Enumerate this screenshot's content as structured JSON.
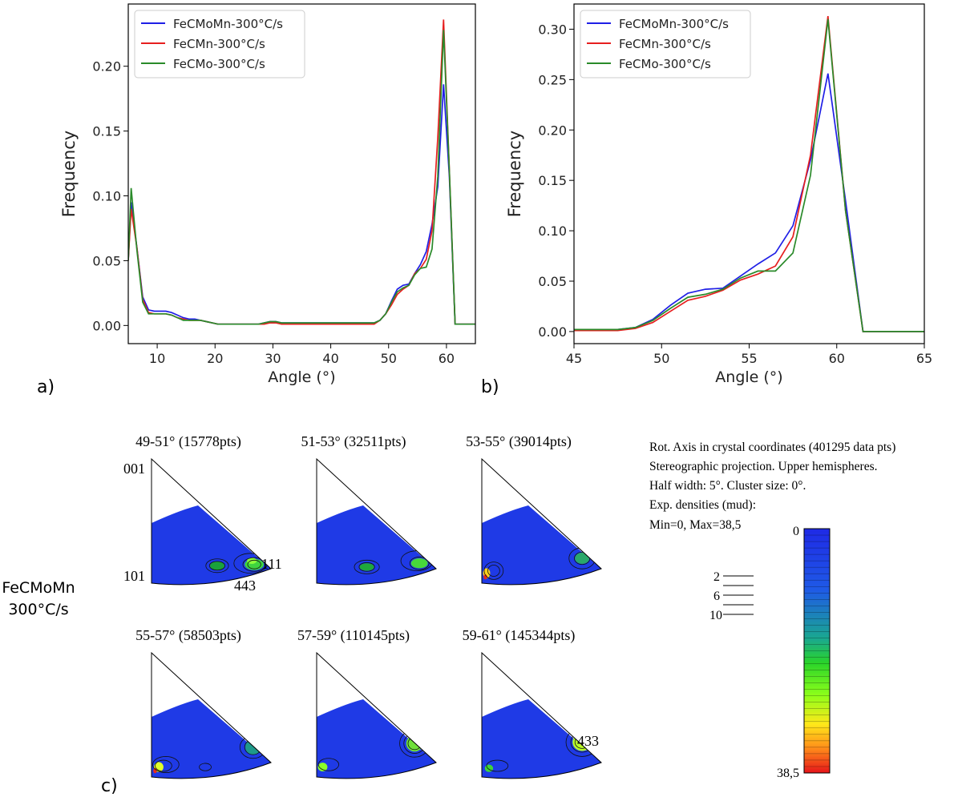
{
  "panel_labels": {
    "a": "a)",
    "b": "b)",
    "c": "c)"
  },
  "chart_data": [
    {
      "type": "line",
      "panel": "a",
      "title": "",
      "xlabel": "Angle (°)",
      "ylabel": "Frequency",
      "xlim": [
        5,
        65
      ],
      "ylim": [
        -0.014,
        0.248
      ],
      "xticks": [
        10,
        20,
        30,
        40,
        50,
        60
      ],
      "yticks": [
        0.0,
        0.05,
        0.1,
        0.15,
        0.2
      ],
      "ytick_labels": [
        "0.00",
        "0.05",
        "0.10",
        "0.15",
        "0.20"
      ],
      "grid": false,
      "legend": "top-left",
      "x": [
        5,
        5.5,
        6.5,
        7.5,
        8.5,
        9.5,
        10.5,
        11.5,
        12.5,
        13.5,
        14.5,
        15.5,
        16.5,
        17.5,
        18.5,
        19.5,
        20.5,
        21.5,
        22.5,
        23.5,
        24.5,
        25.5,
        26.5,
        27.5,
        28.5,
        29.5,
        30.5,
        31.5,
        32.5,
        33.5,
        34.5,
        35.5,
        36.5,
        37.5,
        38.5,
        39.5,
        40.5,
        41.5,
        42.5,
        43.5,
        44.5,
        45.5,
        46.5,
        47.5,
        48.5,
        49.5,
        50.5,
        51.5,
        52.5,
        53.5,
        54.5,
        55.5,
        56.5,
        57.5,
        58.5,
        59.5,
        60.5,
        61.5,
        62.5,
        63.5,
        64.5,
        65
      ],
      "series": [
        {
          "name": "FeCMoMn-300°C/s",
          "color": "#1f1fe6",
          "values": [
            0.05,
            0.095,
            0.06,
            0.022,
            0.012,
            0.011,
            0.011,
            0.011,
            0.01,
            0.008,
            0.006,
            0.005,
            0.005,
            0.004,
            0.003,
            0.002,
            0.001,
            0.001,
            0.001,
            0.001,
            0.001,
            0.001,
            0.001,
            0.001,
            0.002,
            0.003,
            0.003,
            0.002,
            0.002,
            0.002,
            0.002,
            0.002,
            0.002,
            0.002,
            0.002,
            0.002,
            0.002,
            0.002,
            0.002,
            0.002,
            0.002,
            0.002,
            0.002,
            0.002,
            0.004,
            0.009,
            0.019,
            0.028,
            0.031,
            0.032,
            0.04,
            0.047,
            0.057,
            0.078,
            0.107,
            0.186,
            0.115,
            0.001,
            0.001,
            0.001,
            0.001,
            0.001
          ]
        },
        {
          "name": "FeCMn-300°C/s",
          "color": "#e61f1f",
          "values": [
            0.05,
            0.09,
            0.06,
            0.02,
            0.01,
            0.009,
            0.009,
            0.009,
            0.008,
            0.006,
            0.005,
            0.004,
            0.004,
            0.004,
            0.003,
            0.002,
            0.001,
            0.001,
            0.001,
            0.001,
            0.001,
            0.001,
            0.001,
            0.001,
            0.001,
            0.002,
            0.002,
            0.001,
            0.001,
            0.001,
            0.001,
            0.001,
            0.001,
            0.001,
            0.001,
            0.001,
            0.001,
            0.001,
            0.001,
            0.001,
            0.001,
            0.001,
            0.001,
            0.001,
            0.004,
            0.009,
            0.016,
            0.024,
            0.028,
            0.031,
            0.04,
            0.044,
            0.051,
            0.073,
            0.145,
            0.236,
            0.12,
            0.001,
            0.001,
            0.001,
            0.001,
            0.001
          ]
        },
        {
          "name": "FeCMo-300°C/s",
          "color": "#2a8a2a",
          "values": [
            0.05,
            0.106,
            0.058,
            0.018,
            0.009,
            0.009,
            0.009,
            0.009,
            0.008,
            0.006,
            0.004,
            0.004,
            0.004,
            0.004,
            0.003,
            0.002,
            0.001,
            0.001,
            0.001,
            0.001,
            0.001,
            0.001,
            0.001,
            0.001,
            0.002,
            0.003,
            0.003,
            0.002,
            0.002,
            0.002,
            0.002,
            0.002,
            0.002,
            0.002,
            0.002,
            0.002,
            0.002,
            0.002,
            0.002,
            0.002,
            0.002,
            0.002,
            0.002,
            0.002,
            0.004,
            0.009,
            0.018,
            0.026,
            0.029,
            0.031,
            0.039,
            0.044,
            0.045,
            0.059,
            0.115,
            0.228,
            0.12,
            0.001,
            0.001,
            0.001,
            0.001,
            0.001
          ]
        }
      ]
    },
    {
      "type": "line",
      "panel": "b",
      "title": "",
      "xlabel": "Angle (°)",
      "ylabel": "Frequency",
      "xlim": [
        45,
        65
      ],
      "ylim": [
        -0.012,
        0.325
      ],
      "xticks": [
        45,
        50,
        55,
        60,
        65
      ],
      "yticks": [
        0.0,
        0.05,
        0.1,
        0.15,
        0.2,
        0.25,
        0.3
      ],
      "ytick_labels": [
        "0.00",
        "0.05",
        "0.10",
        "0.15",
        "0.20",
        "0.25",
        "0.30"
      ],
      "grid": false,
      "legend": "top-left",
      "x": [
        45,
        45.5,
        46.5,
        47.5,
        48.5,
        49.5,
        50.5,
        51.5,
        52.5,
        53.5,
        54.5,
        55.5,
        56.5,
        57.5,
        58.5,
        59.5,
        60.5,
        61.5,
        62.5,
        63.5,
        64.5,
        65
      ],
      "series": [
        {
          "name": "FeCMoMn-300°C/s",
          "color": "#1f1fe6",
          "values": [
            0.001,
            0.002,
            0.002,
            0.002,
            0.004,
            0.012,
            0.026,
            0.038,
            0.042,
            0.043,
            0.055,
            0.067,
            0.078,
            0.105,
            0.17,
            0.256,
            0.13,
            0.0,
            0.0,
            0.0,
            0.0,
            0.0
          ]
        },
        {
          "name": "FeCMn-300°C/s",
          "color": "#e61f1f",
          "values": [
            0.001,
            0.001,
            0.001,
            0.001,
            0.003,
            0.009,
            0.02,
            0.031,
            0.035,
            0.041,
            0.051,
            0.057,
            0.065,
            0.094,
            0.175,
            0.313,
            0.12,
            0.0,
            0.0,
            0.0,
            0.0,
            0.0
          ]
        },
        {
          "name": "FeCMo-300°C/s",
          "color": "#2a8a2a",
          "values": [
            0.002,
            0.002,
            0.002,
            0.002,
            0.004,
            0.011,
            0.023,
            0.034,
            0.037,
            0.042,
            0.053,
            0.06,
            0.06,
            0.078,
            0.155,
            0.31,
            0.12,
            0.0,
            0.0,
            0.0,
            0.0,
            0.0
          ]
        }
      ]
    }
  ],
  "ipf": {
    "row_label_line1": "FeCMoMn",
    "row_label_line2": "300°C/s",
    "panels": [
      {
        "title": "49-51° (15778pts)",
        "hotspots": [
          {
            "u": 0.55,
            "v": 0.86,
            "w": 0.12,
            "h": 0.07,
            "c": "#1aa23a"
          },
          {
            "u": 0.86,
            "v": 0.85,
            "w": 0.16,
            "h": 0.09,
            "c": "#3fd43f"
          },
          {
            "u": 0.84,
            "v": 0.82,
            "w": 0.08,
            "h": 0.05,
            "c": "#8cff3a"
          }
        ],
        "contours": [
          {
            "u": 0.55,
            "v": 0.86,
            "w": 0.19,
            "h": 0.11
          },
          {
            "u": 0.55,
            "v": 0.86,
            "w": 0.13,
            "h": 0.07
          },
          {
            "u": 0.83,
            "v": 0.84,
            "w": 0.28,
            "h": 0.16
          },
          {
            "u": 0.86,
            "v": 0.85,
            "w": 0.19,
            "h": 0.11
          },
          {
            "u": 0.86,
            "v": 0.85,
            "w": 0.11,
            "h": 0.07
          }
        ]
      },
      {
        "title": "51-53° (32511pts)",
        "hotspots": [
          {
            "u": 0.42,
            "v": 0.87,
            "w": 0.12,
            "h": 0.06,
            "c": "#1fa83a"
          },
          {
            "u": 0.86,
            "v": 0.84,
            "w": 0.14,
            "h": 0.08,
            "c": "#48d83a"
          }
        ],
        "contours": [
          {
            "u": 0.42,
            "v": 0.87,
            "w": 0.21,
            "h": 0.11
          },
          {
            "u": 0.42,
            "v": 0.87,
            "w": 0.13,
            "h": 0.07
          },
          {
            "u": 0.84,
            "v": 0.82,
            "w": 0.27,
            "h": 0.16
          },
          {
            "u": 0.86,
            "v": 0.84,
            "w": 0.16,
            "h": 0.1
          }
        ]
      },
      {
        "title": "53-55° (39014pts)",
        "hotspots": [
          {
            "u": 0.04,
            "v": 0.92,
            "w": 0.06,
            "h": 0.08,
            "c": "#ffd21a"
          },
          {
            "u": 0.03,
            "v": 0.95,
            "w": 0.03,
            "h": 0.04,
            "c": "#e82a1a"
          },
          {
            "u": 0.84,
            "v": 0.8,
            "w": 0.12,
            "h": 0.09,
            "c": "#2aa86a"
          }
        ],
        "contours": [
          {
            "u": 0.1,
            "v": 0.9,
            "w": 0.16,
            "h": 0.14
          },
          {
            "u": 0.1,
            "v": 0.9,
            "w": 0.1,
            "h": 0.09
          },
          {
            "u": 0.84,
            "v": 0.8,
            "w": 0.22,
            "h": 0.17
          },
          {
            "u": 0.84,
            "v": 0.8,
            "w": 0.13,
            "h": 0.1
          }
        ]
      },
      {
        "title": "55-57° (58503pts)",
        "hotspots": [
          {
            "u": 0.06,
            "v": 0.92,
            "w": 0.08,
            "h": 0.08,
            "c": "#e0ff2a"
          },
          {
            "u": 0.03,
            "v": 0.95,
            "w": 0.03,
            "h": 0.04,
            "c": "#e82a1a"
          },
          {
            "u": 0.85,
            "v": 0.76,
            "w": 0.13,
            "h": 0.12,
            "c": "#1f9a8a"
          }
        ],
        "contours": [
          {
            "u": 0.12,
            "v": 0.9,
            "w": 0.22,
            "h": 0.13
          },
          {
            "u": 0.1,
            "v": 0.91,
            "w": 0.14,
            "h": 0.09
          },
          {
            "u": 0.45,
            "v": 0.92,
            "w": 0.1,
            "h": 0.06
          },
          {
            "u": 0.85,
            "v": 0.76,
            "w": 0.22,
            "h": 0.18
          },
          {
            "u": 0.85,
            "v": 0.76,
            "w": 0.14,
            "h": 0.12
          }
        ]
      },
      {
        "title": "57-59° (110145pts)",
        "hotspots": [
          {
            "u": 0.05,
            "v": 0.92,
            "w": 0.08,
            "h": 0.07,
            "c": "#8cff2a"
          },
          {
            "u": 0.82,
            "v": 0.73,
            "w": 0.14,
            "h": 0.13,
            "c": "#6fe03a"
          },
          {
            "u": 0.84,
            "v": 0.7,
            "w": 0.06,
            "h": 0.06,
            "c": "#c8ff2a"
          }
        ],
        "contours": [
          {
            "u": 0.1,
            "v": 0.9,
            "w": 0.17,
            "h": 0.1
          },
          {
            "u": 0.82,
            "v": 0.73,
            "w": 0.25,
            "h": 0.22
          },
          {
            "u": 0.82,
            "v": 0.73,
            "w": 0.18,
            "h": 0.16
          },
          {
            "u": 0.82,
            "v": 0.73,
            "w": 0.11,
            "h": 0.1
          }
        ]
      },
      {
        "title": "59-61° (145344pts)",
        "hotspots": [
          {
            "u": 0.06,
            "v": 0.93,
            "w": 0.07,
            "h": 0.06,
            "c": "#3fd43a"
          },
          {
            "u": 0.84,
            "v": 0.72,
            "w": 0.16,
            "h": 0.14,
            "c": "#b8ff2a"
          },
          {
            "u": 0.85,
            "v": 0.71,
            "w": 0.08,
            "h": 0.07,
            "c": "#ffe83a"
          }
        ],
        "contours": [
          {
            "u": 0.13,
            "v": 0.91,
            "w": 0.18,
            "h": 0.09
          },
          {
            "u": 0.84,
            "v": 0.72,
            "w": 0.27,
            "h": 0.23
          },
          {
            "u": 0.84,
            "v": 0.72,
            "w": 0.19,
            "h": 0.16
          },
          {
            "u": 0.84,
            "v": 0.72,
            "w": 0.12,
            "h": 0.1
          }
        ]
      }
    ],
    "pole_001": "001",
    "pole_101": "101",
    "pole_111": "111",
    "pole_443": "443",
    "pole_433": "433"
  },
  "legend": {
    "line1": "Rot. Axis in crystal coordinates (401295 data pts)",
    "line2": "Stereographic projection. Upper hemispheres.",
    "line3": "Half width: 5°. Cluster size: 0°.",
    "line4": "Exp. densities (mud):",
    "line5": "Min=0, Max=38,5",
    "colorbar_min": "0",
    "colorbar_max": "38,5",
    "contour_levels": [
      "2",
      "6",
      "10"
    ]
  }
}
